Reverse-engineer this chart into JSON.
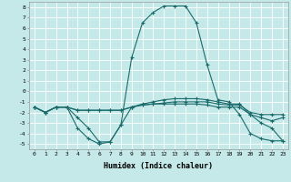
{
  "xlabel": "Humidex (Indice chaleur)",
  "bg_color": "#c5e8e8",
  "line_color": "#1a6b6b",
  "xlim": [
    -0.5,
    23.5
  ],
  "ylim": [
    -5.5,
    8.5
  ],
  "xticks": [
    0,
    1,
    2,
    3,
    4,
    5,
    6,
    7,
    8,
    9,
    10,
    11,
    12,
    13,
    14,
    15,
    16,
    17,
    18,
    19,
    20,
    21,
    22,
    23
  ],
  "yticks": [
    -5,
    -4,
    -3,
    -2,
    -1,
    0,
    1,
    2,
    3,
    4,
    5,
    6,
    7,
    8
  ],
  "lines": [
    {
      "x": [
        0,
        1,
        2,
        3,
        4,
        5,
        6,
        7,
        8,
        9,
        10,
        11,
        12,
        13,
        14,
        15,
        16,
        17,
        18,
        19,
        20,
        21,
        22,
        23
      ],
      "y": [
        -1.5,
        -2.0,
        -1.5,
        -1.5,
        -3.5,
        -4.5,
        -5.0,
        -4.8,
        -3.2,
        3.2,
        6.5,
        7.5,
        8.1,
        8.1,
        8.1,
        6.5,
        2.5,
        -0.8,
        -1.0,
        -2.2,
        -4.0,
        -4.5,
        -4.7,
        -4.7
      ]
    },
    {
      "x": [
        0,
        1,
        2,
        3,
        4,
        5,
        6,
        7,
        8,
        9,
        10,
        11,
        12,
        13,
        14,
        15,
        16,
        17,
        18,
        19,
        20,
        21,
        22,
        23
      ],
      "y": [
        -1.5,
        -2.0,
        -1.5,
        -1.5,
        -1.8,
        -1.8,
        -1.8,
        -1.8,
        -1.8,
        -1.5,
        -1.2,
        -1.0,
        -0.8,
        -0.7,
        -0.7,
        -0.7,
        -0.8,
        -1.0,
        -1.2,
        -1.2,
        -2.2,
        -3.0,
        -3.5,
        -4.7
      ]
    },
    {
      "x": [
        0,
        1,
        2,
        3,
        4,
        5,
        6,
        7,
        8,
        9,
        10,
        11,
        12,
        13,
        14,
        15,
        16,
        17,
        18,
        19,
        20,
        21,
        22,
        23
      ],
      "y": [
        -1.5,
        -2.0,
        -1.5,
        -1.5,
        -2.5,
        -3.5,
        -4.8,
        -4.8,
        -3.2,
        -1.5,
        -1.3,
        -1.2,
        -1.2,
        -1.2,
        -1.2,
        -1.2,
        -1.3,
        -1.5,
        -1.5,
        -1.5,
        -2.2,
        -2.5,
        -2.8,
        -2.5
      ]
    },
    {
      "x": [
        0,
        1,
        2,
        3,
        4,
        5,
        6,
        7,
        8,
        9,
        10,
        11,
        12,
        13,
        14,
        15,
        16,
        17,
        18,
        19,
        20,
        21,
        22,
        23
      ],
      "y": [
        -1.5,
        -2.0,
        -1.5,
        -1.5,
        -1.8,
        -1.8,
        -1.8,
        -1.8,
        -1.8,
        -1.5,
        -1.3,
        -1.2,
        -1.1,
        -1.0,
        -1.0,
        -1.0,
        -1.0,
        -1.2,
        -1.3,
        -1.3,
        -2.0,
        -2.2,
        -2.2,
        -2.2
      ]
    }
  ]
}
